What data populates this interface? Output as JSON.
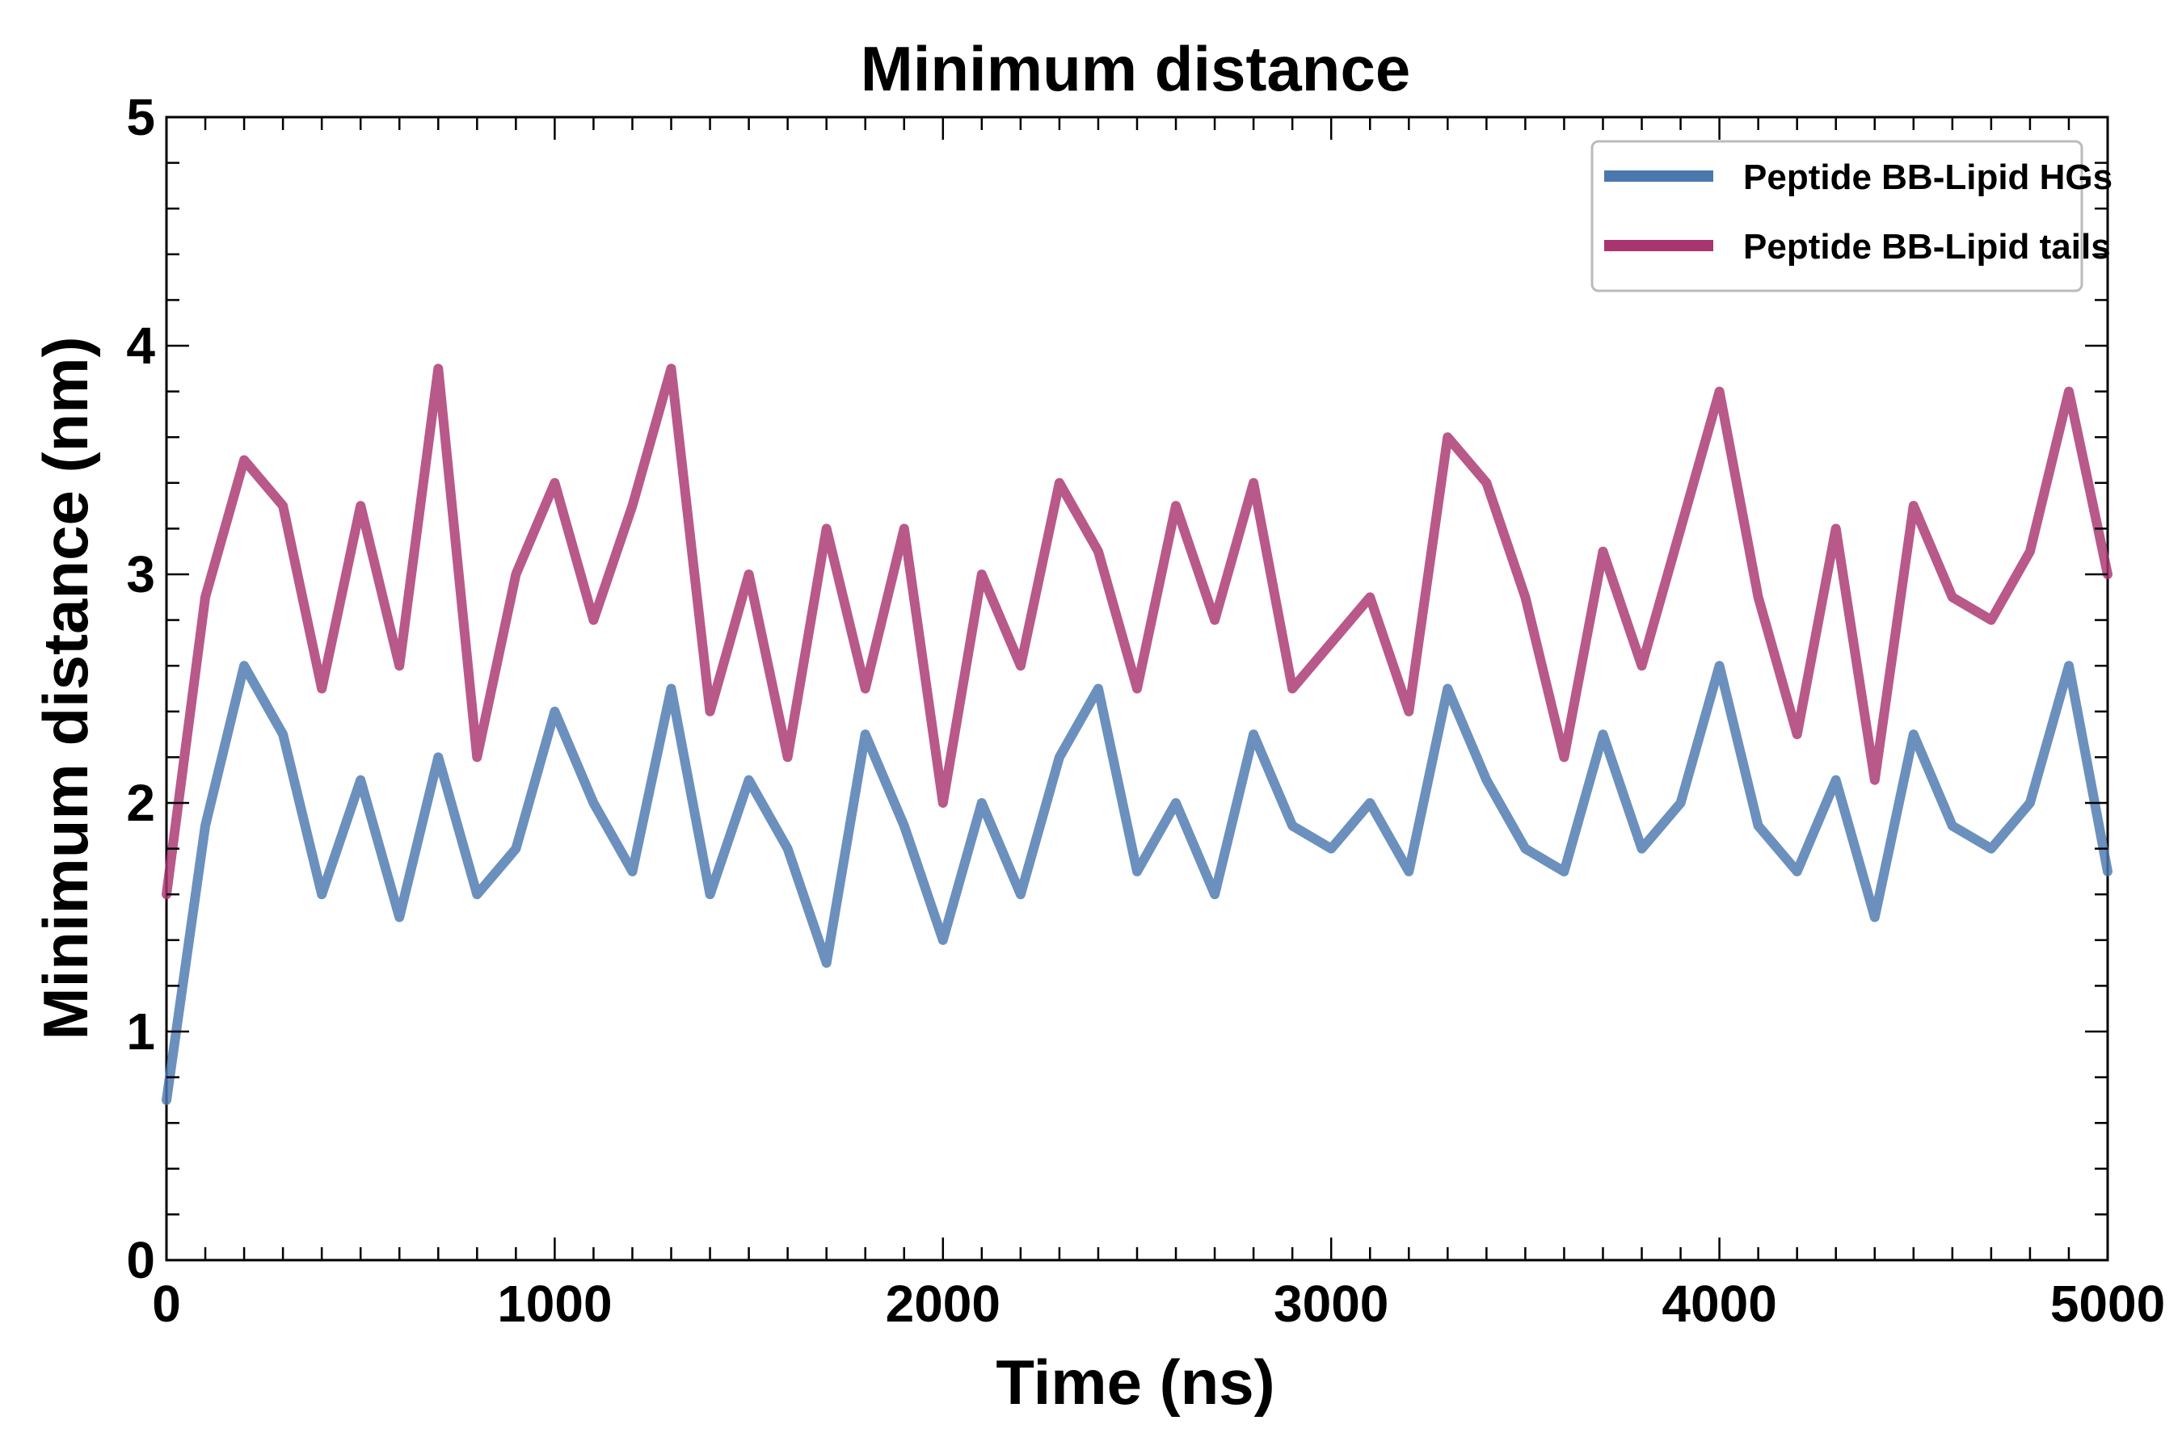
{
  "chart_data": {
    "type": "line",
    "title": "Minimum distance",
    "xlabel": "Time (ns)",
    "ylabel": "Minimum distance (nm)",
    "xlim": [
      0,
      5000
    ],
    "ylim": [
      0,
      5
    ],
    "xticks": [
      0,
      1000,
      2000,
      3000,
      4000,
      5000
    ],
    "yticks": [
      0,
      1,
      2,
      3,
      4,
      5
    ],
    "xtick_labels": [
      "0",
      "1000",
      "2000",
      "3000",
      "4000",
      "5000"
    ],
    "ytick_labels": [
      "0",
      "1",
      "2",
      "3",
      "4",
      "5"
    ],
    "grid": false,
    "legend_position": "top-right",
    "x": [
      0,
      100,
      200,
      300,
      400,
      500,
      600,
      700,
      800,
      900,
      1000,
      1100,
      1200,
      1300,
      1400,
      1500,
      1600,
      1700,
      1800,
      1900,
      2000,
      2100,
      2200,
      2300,
      2400,
      2500,
      2600,
      2700,
      2800,
      2900,
      3000,
      3100,
      3200,
      3300,
      3400,
      3500,
      3600,
      3700,
      3800,
      3900,
      4000,
      4100,
      4200,
      4300,
      4400,
      4500,
      4600,
      4700,
      4800,
      4900,
      5000
    ],
    "series": [
      {
        "name": "Peptide BB-Lipid HGs",
        "color": "#4a78ae",
        "values": [
          0.7,
          1.9,
          2.6,
          2.3,
          1.6,
          2.1,
          1.5,
          2.2,
          1.6,
          1.8,
          2.4,
          2.0,
          1.7,
          2.5,
          1.6,
          2.1,
          1.8,
          1.3,
          2.3,
          1.9,
          1.4,
          2.0,
          1.6,
          2.2,
          2.5,
          1.7,
          2.0,
          1.6,
          2.3,
          1.9,
          1.8,
          2.0,
          1.7,
          2.5,
          2.1,
          1.8,
          1.7,
          2.3,
          1.8,
          2.0,
          2.6,
          1.9,
          1.7,
          2.1,
          1.5,
          2.3,
          1.9,
          1.8,
          2.0,
          2.6,
          1.7
        ]
      },
      {
        "name": "Peptide BB-Lipid tails",
        "color": "#a8356f",
        "values": [
          1.6,
          2.9,
          3.5,
          3.3,
          2.5,
          3.3,
          2.6,
          3.9,
          2.2,
          3.0,
          3.4,
          2.8,
          3.3,
          3.9,
          2.4,
          3.0,
          2.2,
          3.2,
          2.5,
          3.2,
          2.0,
          3.0,
          2.6,
          3.4,
          3.1,
          2.5,
          3.3,
          2.8,
          3.4,
          2.5,
          2.7,
          2.9,
          2.4,
          3.6,
          3.4,
          2.9,
          2.2,
          3.1,
          2.6,
          3.2,
          3.8,
          2.9,
          2.3,
          3.2,
          2.1,
          3.3,
          2.9,
          2.8,
          3.1,
          3.8,
          3.0
        ]
      }
    ]
  }
}
